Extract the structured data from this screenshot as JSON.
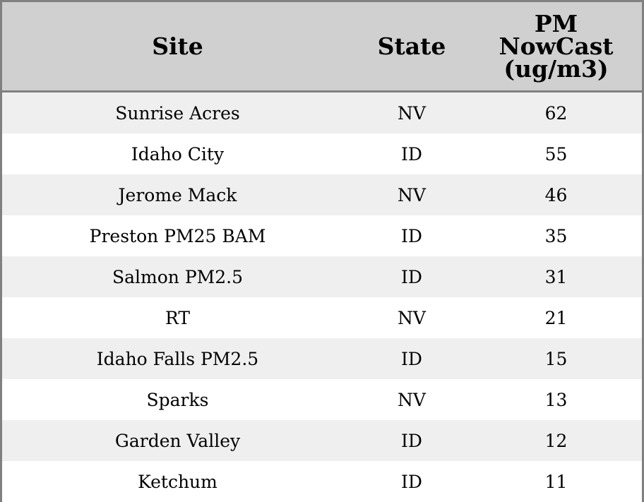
{
  "chart_data": {
    "type": "table",
    "columns": [
      "Site",
      "State",
      "PM NowCast (ug/m3)"
    ],
    "header_lines": [
      [
        "Site"
      ],
      [
        "State"
      ],
      [
        "PM",
        "NowCast",
        "(ug/m3)"
      ]
    ],
    "rows": [
      [
        "Sunrise Acres",
        "NV",
        "62"
      ],
      [
        "Idaho City",
        "ID",
        "55"
      ],
      [
        "Jerome Mack",
        "NV",
        "46"
      ],
      [
        "Preston PM25 BAM",
        "ID",
        "35"
      ],
      [
        "Salmon PM2.5",
        "ID",
        "31"
      ],
      [
        "RT",
        "NV",
        "21"
      ],
      [
        "Idaho Falls PM2.5",
        "ID",
        "15"
      ],
      [
        "Sparks",
        "NV",
        "13"
      ],
      [
        "Garden Valley",
        "ID",
        "12"
      ],
      [
        "Ketchum",
        "ID",
        "11"
      ]
    ],
    "colors": {
      "header_bg": "#d0d0d0",
      "stripe": "#efefef",
      "border": "#808080"
    }
  }
}
